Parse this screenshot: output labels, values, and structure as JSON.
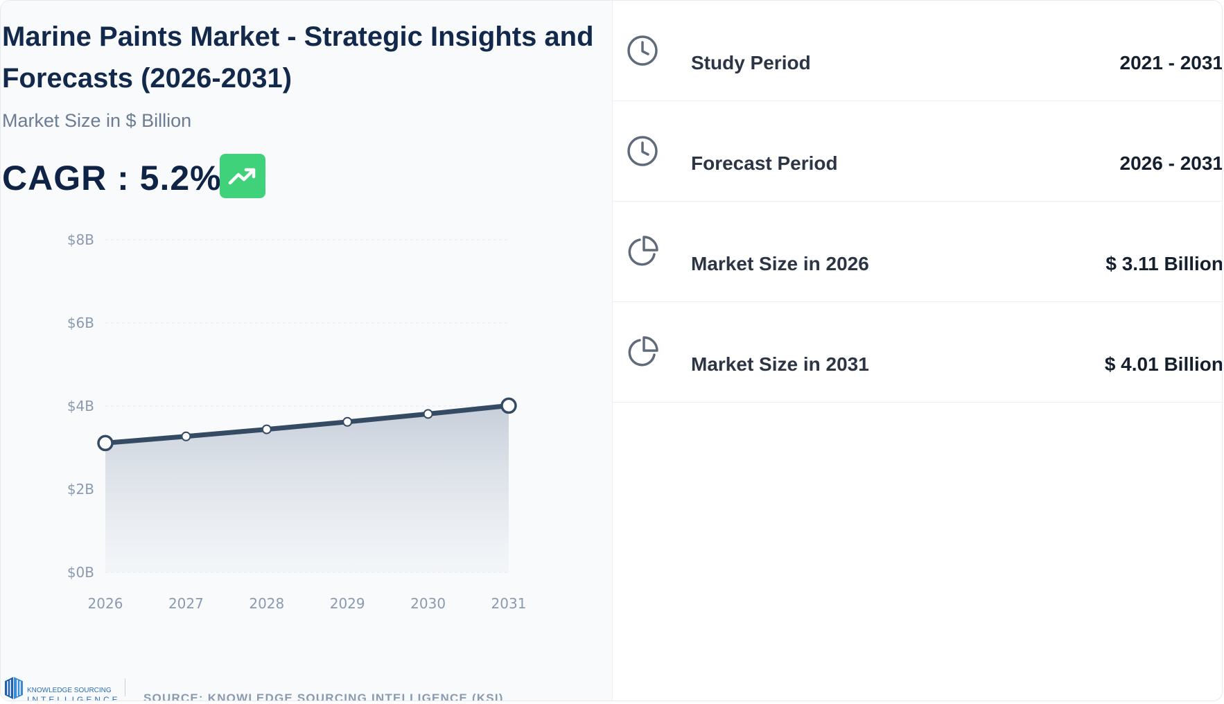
{
  "header": {
    "title": "Marine Paints Market - Strategic Insights and Forecasts (2026-2031)",
    "subtitle": "Market Size in $ Billion",
    "cagr": "CAGR : 5.2%",
    "trend_icon": "trending-up-icon",
    "trend_color": "#3fd27a"
  },
  "stats": [
    {
      "icon": "clock-icon",
      "label": "Study Period",
      "value": "2021 - 2031"
    },
    {
      "icon": "clock-icon",
      "label": "Forecast Period",
      "value": "2026 - 2031"
    },
    {
      "icon": "pie-chart-icon",
      "label": "Market Size in 2026",
      "value": "$ 3.11 Billion"
    },
    {
      "icon": "pie-chart-icon",
      "label": "Market Size in 2031",
      "value": "$ 4.01 Billion"
    }
  ],
  "footer": {
    "logo_top": "KNOWLEDGE SOURCING",
    "logo_bottom": "INTELLIGENCE",
    "source": "SOURCE: KNOWLEDGE SOURCING INTELLIGENCE (KSI)"
  },
  "chart_data": {
    "type": "area",
    "categories": [
      "2026",
      "2027",
      "2028",
      "2029",
      "2030",
      "2031"
    ],
    "values": [
      3.11,
      3.27,
      3.44,
      3.62,
      3.81,
      4.01
    ],
    "y_ticks": [
      "$0B",
      "$2B",
      "$4B",
      "$6B",
      "$8B"
    ],
    "ylim": [
      0,
      8
    ],
    "grid": true,
    "line_color": "#344b63",
    "fill_color": "#cfd6df"
  }
}
